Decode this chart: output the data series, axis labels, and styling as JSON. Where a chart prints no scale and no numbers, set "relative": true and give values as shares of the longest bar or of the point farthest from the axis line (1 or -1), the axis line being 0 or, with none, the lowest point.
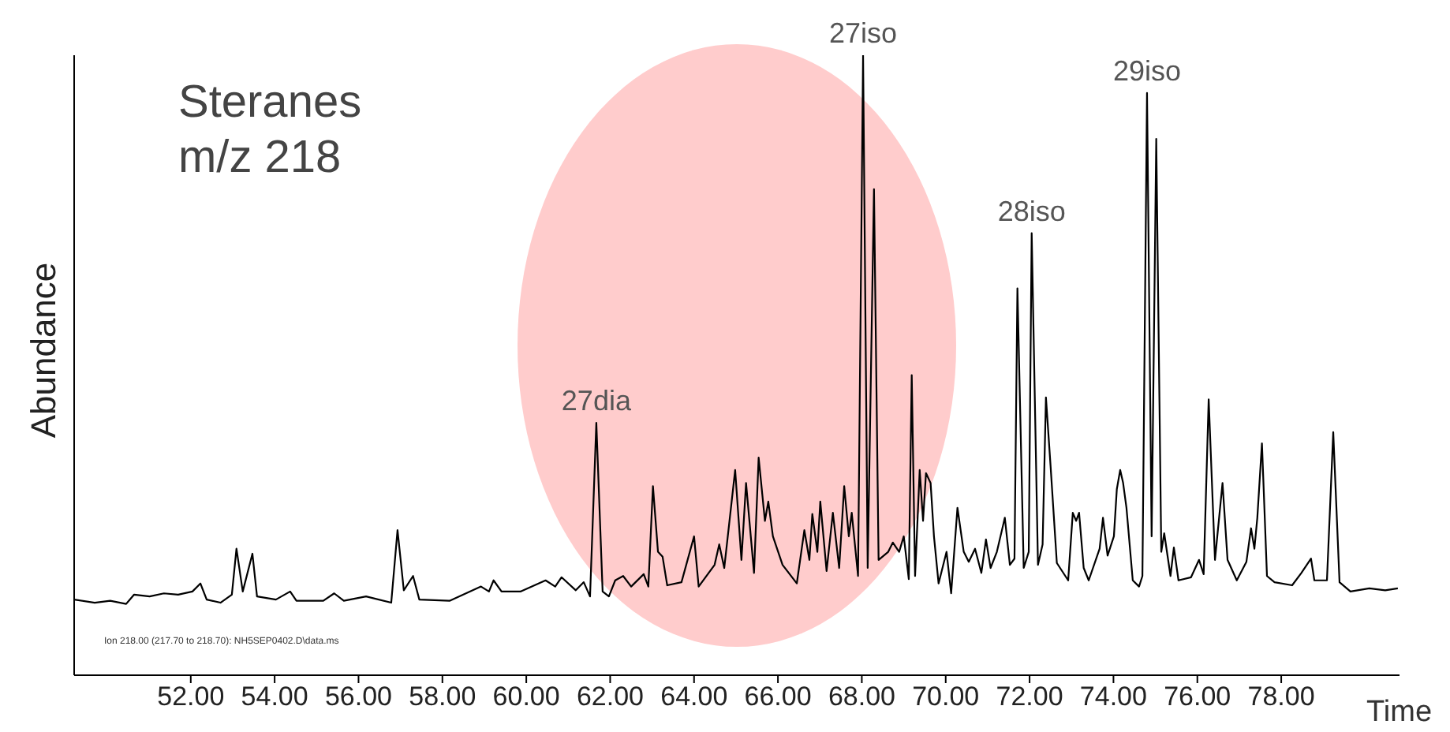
{
  "chart_data": {
    "type": "line",
    "relative": true,
    "title": "Steranes",
    "subtitle": "m/z 218",
    "xlabel": "Time",
    "ylabel": "Abundance",
    "color": "#000000",
    "xlim": [
      49.22,
      80.82
    ],
    "xticks": [
      {
        "value": 52,
        "label": "52.00"
      },
      {
        "value": 54,
        "label": "54.00"
      },
      {
        "value": 56,
        "label": "56.00"
      },
      {
        "value": 58,
        "label": "58.00"
      },
      {
        "value": 60,
        "label": "60.00"
      },
      {
        "value": 62,
        "label": "62.00"
      },
      {
        "value": 64,
        "label": "64.00"
      },
      {
        "value": 66,
        "label": "66.00"
      },
      {
        "value": 68,
        "label": "68.00"
      },
      {
        "value": 70,
        "label": "70.00"
      },
      {
        "value": 72,
        "label": "72.00"
      },
      {
        "value": 74,
        "label": "74.00"
      },
      {
        "value": 76,
        "label": "76.00"
      },
      {
        "value": 78,
        "label": "78.00"
      }
    ],
    "annotations": [
      {
        "text": "27dia",
        "x": 61.67,
        "y": 0.407
      },
      {
        "text": "27iso",
        "x": 68.03,
        "y": 1
      },
      {
        "text": "28iso",
        "x": 72.05,
        "y": 0.713
      },
      {
        "text": "29iso",
        "x": 74.8,
        "y": 0.939
      },
      "Ion 218.00 (217.70 to 218.70): NH5SEP0402.D\\data.ms"
    ],
    "x": [
      49.22,
      49.71,
      50.08,
      50.46,
      50.65,
      51.02,
      51.36,
      51.7,
      52.04,
      52.23,
      52.38,
      52.71,
      52.98,
      53.09,
      53.24,
      53.47,
      53.58,
      54.03,
      54.37,
      54.52,
      55.16,
      55.42,
      55.65,
      56.18,
      56.78,
      56.93,
      57.08,
      57.3,
      57.45,
      58.17,
      58.92,
      59.11,
      59.22,
      59.41,
      59.86,
      60.46,
      60.69,
      60.84,
      61.18,
      61.37,
      61.52,
      61.67,
      61.82,
      61.97,
      62.12,
      62.31,
      62.5,
      62.8,
      62.91,
      63.02,
      63.14,
      63.25,
      63.36,
      63.7,
      64.0,
      64.11,
      64.49,
      64.6,
      64.72,
      64.98,
      65.13,
      65.24,
      65.43,
      65.54,
      65.69,
      65.77,
      65.88,
      66.11,
      66.45,
      66.63,
      66.75,
      66.82,
      66.94,
      67.01,
      67.16,
      67.31,
      67.46,
      67.58,
      67.69,
      67.76,
      67.91,
      68.03,
      68.14,
      68.29,
      68.4,
      68.63,
      68.74,
      68.89,
      69.0,
      69.12,
      69.19,
      69.27,
      69.38,
      69.46,
      69.53,
      69.64,
      69.72,
      69.83,
      70.02,
      70.13,
      70.28,
      70.43,
      70.55,
      70.7,
      70.85,
      70.96,
      71.07,
      71.22,
      71.41,
      71.53,
      71.64,
      71.71,
      71.86,
      71.98,
      72.05,
      72.2,
      72.31,
      72.39,
      72.5,
      72.65,
      72.92,
      73.03,
      73.11,
      73.18,
      73.29,
      73.41,
      73.67,
      73.75,
      73.86,
      74.01,
      74.08,
      74.16,
      74.23,
      74.31,
      74.46,
      74.61,
      74.69,
      74.8,
      74.91,
      75.02,
      75.14,
      75.21,
      75.36,
      75.44,
      75.55,
      75.85,
      76.04,
      76.15,
      76.27,
      76.42,
      76.6,
      76.72,
      76.94,
      77.17,
      77.28,
      77.36,
      77.43,
      77.54,
      77.66,
      77.84,
      78.26,
      78.48,
      78.71,
      78.79,
      79.09,
      79.24,
      79.39,
      79.65,
      80.1,
      80.48,
      80.78
    ],
    "values": [
      0.122,
      0.117,
      0.12,
      0.115,
      0.13,
      0.127,
      0.132,
      0.13,
      0.135,
      0.148,
      0.122,
      0.117,
      0.13,
      0.204,
      0.135,
      0.196,
      0.127,
      0.122,
      0.135,
      0.12,
      0.12,
      0.132,
      0.12,
      0.127,
      0.117,
      0.234,
      0.137,
      0.16,
      0.122,
      0.12,
      0.143,
      0.135,
      0.153,
      0.135,
      0.135,
      0.153,
      0.143,
      0.158,
      0.137,
      0.15,
      0.127,
      0.407,
      0.135,
      0.127,
      0.153,
      0.16,
      0.143,
      0.163,
      0.143,
      0.305,
      0.199,
      0.191,
      0.145,
      0.15,
      0.224,
      0.143,
      0.178,
      0.211,
      0.173,
      0.331,
      0.186,
      0.31,
      0.165,
      0.351,
      0.249,
      0.28,
      0.224,
      0.178,
      0.148,
      0.234,
      0.186,
      0.26,
      0.199,
      0.28,
      0.168,
      0.262,
      0.173,
      0.305,
      0.224,
      0.262,
      0.16,
      1,
      0.173,
      0.784,
      0.186,
      0.199,
      0.214,
      0.199,
      0.224,
      0.155,
      0.484,
      0.16,
      0.331,
      0.249,
      0.326,
      0.31,
      0.224,
      0.148,
      0.199,
      0.132,
      0.27,
      0.199,
      0.183,
      0.204,
      0.165,
      0.219,
      0.173,
      0.199,
      0.254,
      0.178,
      0.188,
      0.624,
      0.173,
      0.199,
      0.713,
      0.178,
      0.211,
      0.448,
      0.338,
      0.181,
      0.153,
      0.262,
      0.249,
      0.262,
      0.173,
      0.153,
      0.204,
      0.254,
      0.193,
      0.224,
      0.3,
      0.331,
      0.31,
      0.27,
      0.153,
      0.143,
      0.16,
      0.939,
      0.224,
      0.865,
      0.199,
      0.229,
      0.16,
      0.206,
      0.153,
      0.158,
      0.186,
      0.163,
      0.445,
      0.186,
      0.31,
      0.186,
      0.153,
      0.183,
      0.237,
      0.204,
      0.254,
      0.374,
      0.16,
      0.15,
      0.145,
      0.165,
      0.188,
      0.153,
      0.153,
      0.392,
      0.15,
      0.135,
      0.14,
      0.137,
      0.14
    ]
  }
}
